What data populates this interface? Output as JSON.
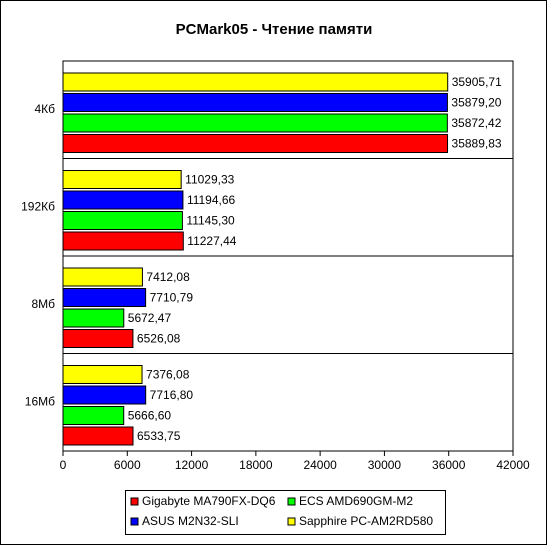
{
  "chart_data": {
    "type": "bar",
    "orientation": "horizontal",
    "title": "PCMark05 - Чтение памяти",
    "categories": [
      "4Кб",
      "192Кб",
      "8Мб",
      "16Мб"
    ],
    "series": [
      {
        "name": "Gigabyte MA790FX-DQ6",
        "color": "#ff0000",
        "values": [
          35889.83,
          11227.44,
          6526.08,
          6533.75
        ],
        "value_labels": [
          "35889,83",
          "11227,44",
          "6526,08",
          "6533,75"
        ]
      },
      {
        "name": "ECS AMD690GM-M2",
        "color": "#00ff00",
        "values": [
          35872.42,
          11145.3,
          5672.47,
          5666.6
        ],
        "value_labels": [
          "35872,42",
          "11145,30",
          "5672,47",
          "5666,60"
        ]
      },
      {
        "name": "ASUS M2N32-SLI",
        "color": "#0000ff",
        "values": [
          35879.2,
          11194.66,
          7710.79,
          7716.8
        ],
        "value_labels": [
          "35879,20",
          "11194,66",
          "7710,79",
          "7716,80"
        ]
      },
      {
        "name": "Sapphire PC-AM2RD580",
        "color": "#ffff00",
        "values": [
          35905.71,
          11029.33,
          7412.08,
          7376.08
        ],
        "value_labels": [
          "35905,71",
          "11029,33",
          "7412,08",
          "7376,08"
        ]
      }
    ],
    "xlim": [
      0,
      42000
    ],
    "xticks": [
      0,
      6000,
      12000,
      18000,
      24000,
      30000,
      36000,
      42000
    ]
  }
}
